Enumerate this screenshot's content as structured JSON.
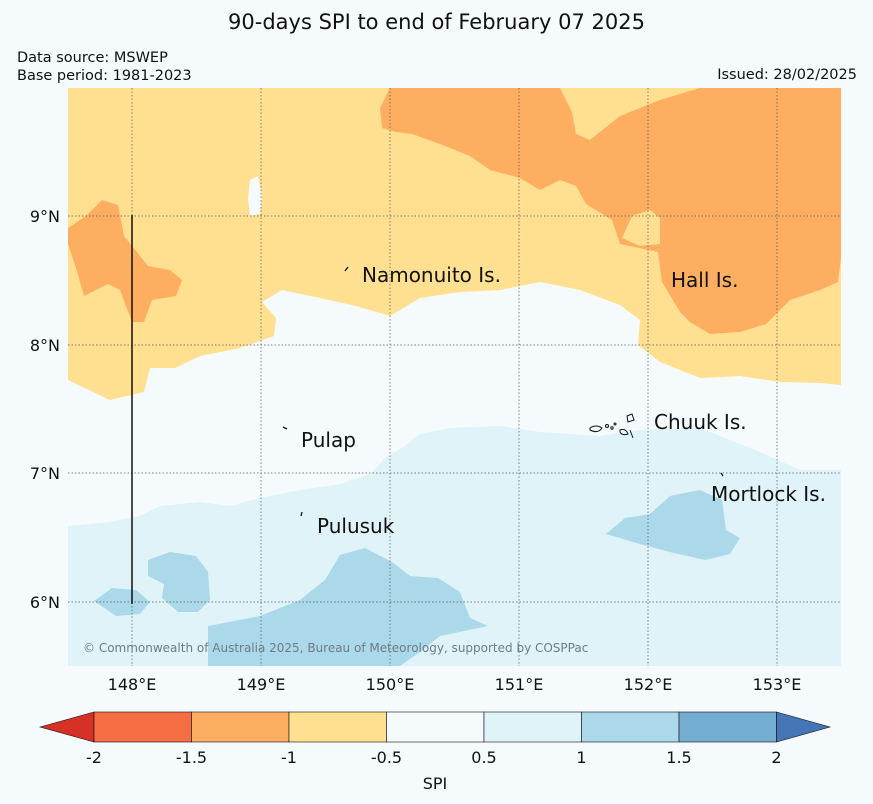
{
  "title": "90-days SPI to end of February 07 2025",
  "data_source": "Data source: MSWEP",
  "base_period": "Base period: 1981-2023",
  "issued": "Issued: 28/02/2025",
  "copyright": "© Commonwealth of Australia 2025, Bureau of Meteorology, supported by COSPPac",
  "map": {
    "lon_ticks": [
      "148°E",
      "149°E",
      "150°E",
      "151°E",
      "152°E",
      "153°E"
    ],
    "lat_ticks": [
      "9°N",
      "8°N",
      "7°N",
      "6°N"
    ],
    "places": [
      {
        "name": "Namonuito Is."
      },
      {
        "name": "Hall Is."
      },
      {
        "name": "Pulap"
      },
      {
        "name": "Chuuk Is."
      },
      {
        "name": "Mortlock Is."
      },
      {
        "name": "Pulusuk"
      }
    ]
  },
  "legend": {
    "label": "SPI",
    "ticks": [
      "-2",
      "-1.5",
      "-1",
      "-0.5",
      "0.5",
      "1",
      "1.5",
      "2"
    ],
    "colors": [
      "#d73027",
      "#f46d43",
      "#fdae61",
      "#fee090",
      "#f5fafd",
      "#e0f3f8",
      "#abd9e9",
      "#74add1",
      "#4575b4"
    ]
  }
}
